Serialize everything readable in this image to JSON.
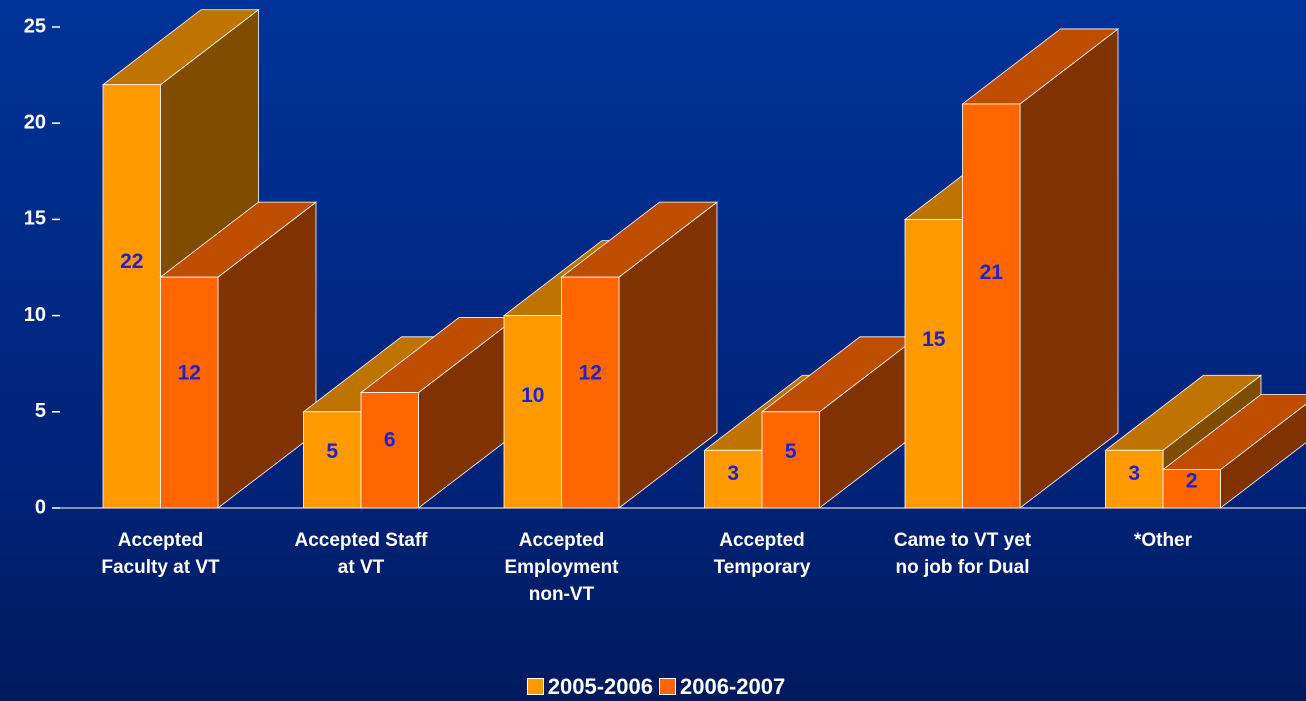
{
  "chart_data": {
    "type": "bar3d",
    "categories": [
      "Accepted\nFaculty at VT",
      "Accepted Staff\nat VT",
      "Accepted\nEmployment\nnon-VT",
      "Accepted\nTemporary",
      "Came to VT yet\nno job for Dual",
      "*Other"
    ],
    "series": [
      {
        "name": "2005-2006",
        "color": "#ff9900",
        "values": [
          22,
          5,
          10,
          3,
          15,
          3
        ]
      },
      {
        "name": "2006-2007",
        "color": "#ff6600",
        "values": [
          12,
          6,
          12,
          5,
          21,
          2
        ]
      }
    ],
    "ylim": [
      0,
      25
    ],
    "yticks": [
      0,
      5,
      10,
      15,
      20,
      25
    ],
    "legend": "bottom"
  }
}
